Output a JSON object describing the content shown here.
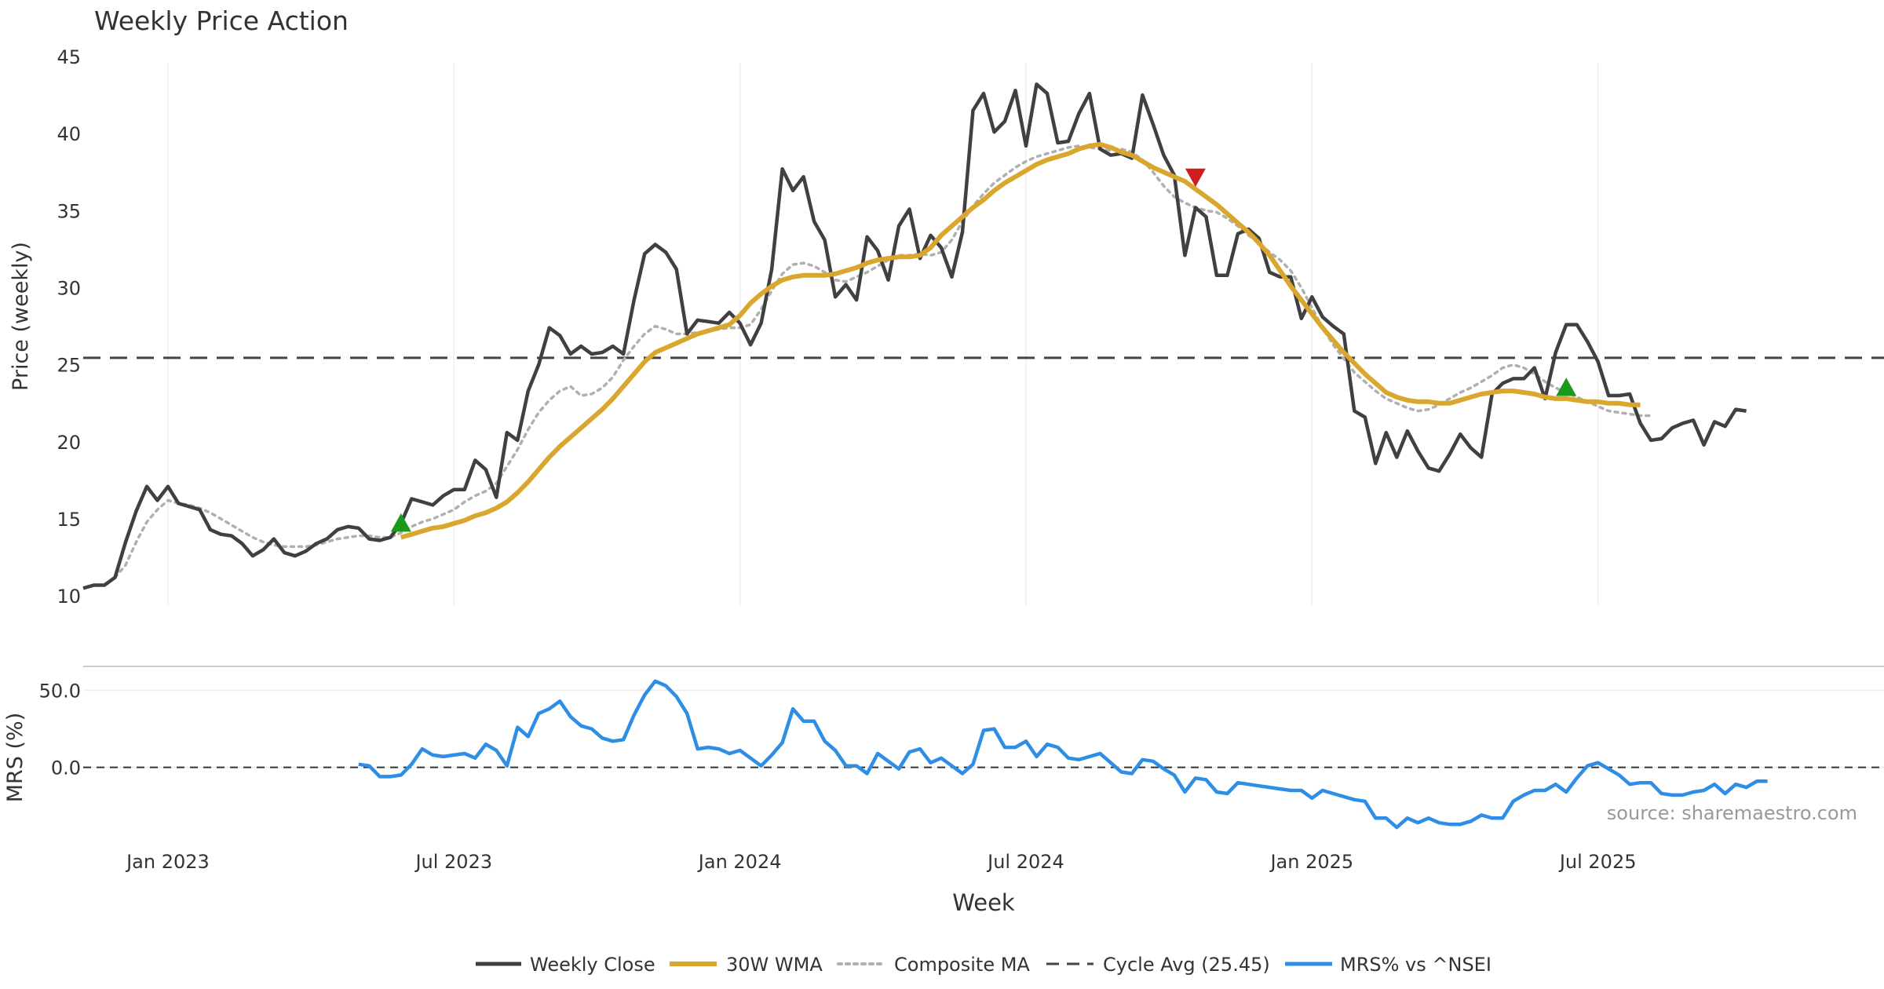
{
  "chart_data": {
    "type": "line",
    "title": "Weekly Price Action",
    "source": "source: sharemaestro.com",
    "xlabel": "Week",
    "x_ticks": [
      "Jan 2023",
      "Jul 2023",
      "Jan 2024",
      "Jul 2024",
      "Jan 2025",
      "Jul 2025"
    ],
    "x_tick_weeks": [
      8,
      35,
      62,
      89,
      116,
      143
    ],
    "weeks_total": 170,
    "price_panel": {
      "ylabel": "Price (weekly)",
      "ylim": [
        9.4,
        45
      ],
      "y_ticks": [
        "10",
        "15",
        "20",
        "25",
        "30",
        "35",
        "40",
        "45"
      ],
      "y_tick_values": [
        10,
        15,
        20,
        25,
        30,
        35,
        40,
        45
      ],
      "cycle_avg": 25.45
    },
    "mrs_panel": {
      "ylabel": "MRS (%)",
      "ylim": [
        -42,
        62
      ],
      "y_ticks": [
        "50.0",
        "0.0"
      ],
      "y_tick_values": [
        50,
        0
      ],
      "zero_line": 0
    },
    "series": [
      {
        "name": "Weekly Close",
        "color": "#404040",
        "style": "solid",
        "values": [
          10.5,
          10.7,
          10.7,
          11.2,
          13.5,
          15.5,
          17.1,
          16.2,
          17.1,
          16.0,
          15.8,
          15.6,
          14.3,
          14.0,
          13.9,
          13.4,
          12.6,
          13.0,
          13.7,
          12.8,
          12.6,
          12.9,
          13.4,
          13.7,
          14.3,
          14.5,
          14.4,
          13.7,
          13.6,
          13.8,
          14.7,
          16.3,
          16.1,
          15.9,
          16.5,
          16.9,
          16.9,
          18.8,
          18.2,
          16.4,
          20.6,
          20.1,
          23.3,
          25.0,
          27.4,
          26.9,
          25.7,
          26.2,
          25.7,
          25.8,
          26.2,
          25.7,
          29.2,
          32.2,
          32.8,
          32.3,
          31.2,
          27.0,
          27.9,
          27.8,
          27.7,
          28.4,
          27.7,
          26.3,
          27.7,
          31.2,
          37.7,
          36.3,
          37.2,
          34.3,
          33.1,
          29.4,
          30.2,
          29.2,
          33.3,
          32.4,
          30.5,
          34.0,
          35.1,
          31.9,
          33.4,
          32.6,
          30.7,
          33.6,
          41.5,
          42.6,
          40.1,
          40.8,
          42.8,
          39.2,
          43.2,
          42.6,
          39.4,
          39.5,
          41.3,
          42.6,
          39.0,
          38.6,
          38.7,
          38.4,
          42.5,
          40.6,
          38.6,
          37.3,
          32.1,
          35.2,
          34.6,
          30.8,
          30.8,
          33.5,
          33.8,
          33.2,
          31.0,
          30.7,
          30.7,
          28.0,
          29.4,
          28.1,
          27.5,
          27.0,
          22.0,
          21.6,
          18.6,
          20.6,
          19.0,
          20.7,
          19.4,
          18.3,
          18.1,
          19.2,
          20.5,
          19.6,
          19.0,
          23.1,
          23.8,
          24.1,
          24.1,
          24.8,
          22.8,
          25.8,
          27.6,
          27.6,
          26.5,
          25.2,
          23.0,
          23.0,
          23.1,
          21.2,
          20.1,
          20.2,
          20.9,
          21.2,
          21.4,
          19.8,
          21.3,
          21.0,
          22.1,
          22.0
        ]
      },
      {
        "name": "30W WMA",
        "color": "#d9a62e",
        "style": "solid",
        "start_week": 30,
        "values": [
          13.8,
          14.0,
          14.2,
          14.4,
          14.5,
          14.7,
          14.9,
          15.2,
          15.4,
          15.7,
          16.1,
          16.7,
          17.4,
          18.2,
          19.0,
          19.7,
          20.3,
          20.9,
          21.5,
          22.1,
          22.8,
          23.6,
          24.4,
          25.2,
          25.8,
          26.1,
          26.4,
          26.7,
          27.0,
          27.2,
          27.4,
          27.6,
          28.2,
          29.0,
          29.6,
          30.1,
          30.5,
          30.7,
          30.8,
          30.8,
          30.8,
          30.9,
          31.1,
          31.3,
          31.6,
          31.8,
          31.9,
          32.0,
          32.0,
          32.1,
          32.6,
          33.4,
          34.0,
          34.6,
          35.2,
          35.7,
          36.3,
          36.8,
          37.2,
          37.6,
          38.0,
          38.3,
          38.5,
          38.7,
          39.0,
          39.2,
          39.3,
          39.1,
          38.8,
          38.6,
          38.2,
          37.8,
          37.5,
          37.2,
          36.9,
          36.4,
          35.9,
          35.4,
          34.8,
          34.2,
          33.6,
          32.9,
          32.1,
          31.1,
          30.1,
          29.2,
          28.3,
          27.4,
          26.6,
          25.8,
          25.1,
          24.4,
          23.8,
          23.2,
          22.9,
          22.7,
          22.6,
          22.6,
          22.5,
          22.5,
          22.7,
          22.9,
          23.1,
          23.2,
          23.3,
          23.3,
          23.2,
          23.1,
          22.9,
          22.8,
          22.8,
          22.7,
          22.6,
          22.6,
          22.5,
          22.5,
          22.4,
          22.4
        ]
      },
      {
        "name": "Composite MA",
        "color": "#b0b0b0",
        "style": "dotted",
        "start_week": 3,
        "values": [
          11.2,
          12.0,
          13.5,
          14.8,
          15.6,
          16.2,
          16.0,
          15.9,
          15.7,
          15.4,
          15.0,
          14.6,
          14.2,
          13.8,
          13.5,
          13.3,
          13.2,
          13.2,
          13.2,
          13.3,
          13.5,
          13.7,
          13.8,
          13.9,
          13.9,
          13.8,
          13.8,
          14.1,
          14.5,
          14.8,
          15.0,
          15.3,
          15.6,
          16.1,
          16.5,
          16.8,
          17.3,
          18.4,
          19.5,
          20.8,
          21.9,
          22.7,
          23.3,
          23.6,
          23.0,
          23.1,
          23.5,
          24.2,
          25.3,
          26.2,
          27.0,
          27.5,
          27.3,
          27.0,
          27.0,
          27.1,
          27.2,
          27.3,
          27.4,
          27.4,
          27.6,
          28.6,
          29.8,
          30.9,
          31.5,
          31.6,
          31.4,
          31.0,
          30.5,
          30.4,
          30.7,
          31.0,
          31.4,
          31.8,
          32.1,
          32.1,
          32.2,
          32.1,
          32.3,
          33.1,
          34.3,
          35.3,
          36.1,
          36.8,
          37.3,
          37.8,
          38.2,
          38.5,
          38.7,
          38.9,
          39.1,
          39.2,
          39.1,
          39.0,
          38.9,
          39.0,
          38.8,
          38.3,
          37.5,
          36.6,
          35.9,
          35.5,
          35.2,
          35.0,
          34.9,
          34.5,
          34.0,
          33.4,
          32.9,
          32.3,
          31.8,
          31.1,
          30.0,
          28.7,
          27.4,
          26.3,
          25.4,
          24.5,
          23.9,
          23.3,
          22.8,
          22.5,
          22.2,
          22.0,
          22.1,
          22.4,
          22.8,
          23.2,
          23.5,
          23.9,
          24.3,
          24.8,
          25.0,
          24.8,
          24.4,
          23.9,
          23.5,
          23.2,
          22.9,
          22.6,
          22.3,
          22.0,
          21.9,
          21.8,
          21.7,
          21.7
        ]
      },
      {
        "name": "MRS% vs ^NSEI",
        "color": "#2e8ee6",
        "style": "solid",
        "panel": "mrs",
        "start_week": 26,
        "values": [
          2,
          1,
          -6,
          -6,
          -5,
          2,
          12,
          8,
          7,
          8,
          9,
          6,
          15,
          11,
          1,
          26,
          20,
          35,
          38,
          43,
          33,
          27,
          25,
          19,
          17,
          18,
          34,
          47,
          56,
          53,
          46,
          35,
          12,
          13,
          12,
          9,
          11,
          6,
          1,
          8,
          16,
          38,
          30,
          30,
          17,
          11,
          1,
          1,
          -4,
          9,
          4,
          -1,
          10,
          12,
          3,
          6,
          1,
          -4,
          2,
          24,
          25,
          13,
          13,
          17,
          7,
          15,
          13,
          6,
          5,
          7,
          9,
          3,
          -3,
          -4,
          5,
          4,
          -1,
          -5,
          -16,
          -7,
          -8,
          -16,
          -17,
          -10,
          -11,
          -12,
          -13,
          -14,
          -15,
          -15,
          -20,
          -15,
          -17,
          -19,
          -21,
          -22,
          -33,
          -33,
          -39,
          -33,
          -36,
          -33,
          -36,
          -37,
          -37,
          -35,
          -31,
          -33,
          -33,
          -22,
          -18,
          -15,
          -15,
          -11,
          -16,
          -7,
          1,
          3,
          -1,
          -5,
          -11,
          -10,
          -10,
          -17,
          -18,
          -18,
          -16,
          -15,
          -11,
          -17,
          -11,
          -13,
          -9,
          -9
        ]
      }
    ],
    "cycle_avg_label": "Cycle Avg (25.45)",
    "markers": [
      {
        "type": "buy",
        "shape": "triangle-up",
        "color": "#1a9a1a",
        "week": 30,
        "value": 14.7
      },
      {
        "type": "sell",
        "shape": "triangle-down",
        "color": "#cc1f1f",
        "week": 105,
        "value": 37.2
      },
      {
        "type": "buy",
        "shape": "triangle-up",
        "color": "#1a9a1a",
        "week": 140,
        "value": 23.5
      }
    ],
    "legend": {
      "position": "bottom-center",
      "entries": [
        "Weekly Close",
        "30W WMA",
        "Composite MA",
        "Cycle Avg (25.45)",
        "MRS% vs ^NSEI"
      ]
    }
  }
}
